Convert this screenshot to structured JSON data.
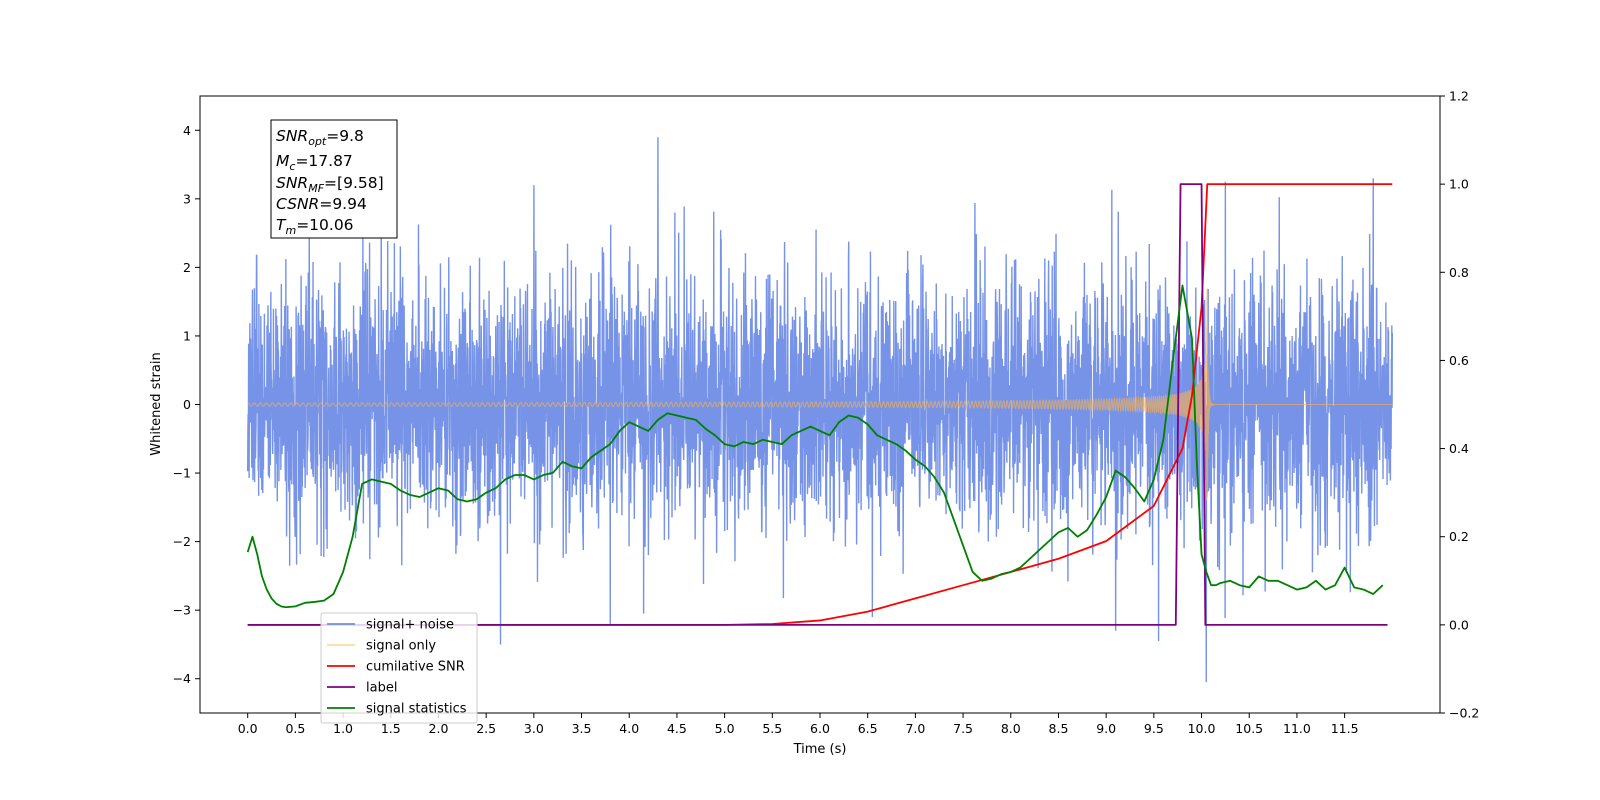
{
  "chart_data": {
    "type": "line",
    "xlabel": "Time (s)",
    "ylabel": "Whitened strain",
    "xlim": [
      -0.5,
      12.5
    ],
    "ylim": [
      -4.5,
      4.5
    ],
    "y2lim": [
      -0.2,
      1.2
    ],
    "x_ticks": [
      0.0,
      0.5,
      1.0,
      1.5,
      2.0,
      2.5,
      3.0,
      3.5,
      4.0,
      4.5,
      5.0,
      5.5,
      6.0,
      6.5,
      7.0,
      7.5,
      8.0,
      8.5,
      9.0,
      9.5,
      10.0,
      10.5,
      11.0,
      11.5
    ],
    "x_tick_labels": [
      "0.0",
      "0.5",
      "1.0",
      "1.5",
      "2.0",
      "2.5",
      "3.0",
      "3.5",
      "4.0",
      "4.5",
      "5.0",
      "5.5",
      "6.0",
      "6.5",
      "7.0",
      "7.5",
      "8.0",
      "8.5",
      "9.0",
      "9.5",
      "10.0",
      "10.5",
      "11.0",
      "11.5"
    ],
    "y_ticks": [
      -4,
      -3,
      -2,
      -1,
      0,
      1,
      2,
      3,
      4
    ],
    "y_tick_labels": [
      "−4",
      "−3",
      "−2",
      "−1",
      "0",
      "1",
      "2",
      "3",
      "4"
    ],
    "y2_ticks": [
      -0.2,
      0.0,
      0.2,
      0.4,
      0.6,
      0.8,
      1.0,
      1.2
    ],
    "y2_tick_labels": [
      "−0.2",
      "0.0",
      "0.2",
      "0.4",
      "0.6",
      "0.8",
      "1.0",
      "1.2"
    ],
    "grid": false,
    "legend_placement": "lower-left",
    "info_box": {
      "snr_opt": {
        "base": "SNR",
        "sub": "opt",
        "value": "=9.8"
      },
      "mc": {
        "base": "M",
        "sub": "c",
        "value": "=17.87"
      },
      "snr_mf": {
        "base": "SNR",
        "sub": "MF",
        "value": "=[9.58]"
      },
      "csnr": {
        "base": "CSNR",
        "value": "=9.94"
      },
      "tm": {
        "base": "T",
        "sub": "m",
        "value": "=10.06"
      }
    },
    "series": [
      {
        "name": "signal+ noise",
        "axis": "left",
        "color": "#6f8de6",
        "kind": "noise",
        "x_range": [
          0.0,
          12.0
        ],
        "sigma": 0.9,
        "y_min": -4.05,
        "y_max": 3.9,
        "spikes": [
          [
            4.3,
            3.9
          ],
          [
            10.05,
            -4.05
          ],
          [
            11.8,
            3.3
          ],
          [
            10.25,
            3.25
          ],
          [
            2.65,
            -3.5
          ],
          [
            9.1,
            -3.3
          ],
          [
            9.55,
            -3.45
          ],
          [
            3.8,
            -3.2
          ],
          [
            4.15,
            -3.05
          ],
          [
            6.55,
            -3.1
          ],
          [
            1.4,
            3.1
          ],
          [
            3.0,
            3.2
          ]
        ]
      },
      {
        "name": "signal only",
        "axis": "left",
        "color": "#ffb347",
        "kind": "chirp",
        "x_range": [
          0.0,
          12.0
        ],
        "merger_time": 10.06,
        "peak_amplitude": 1.75
      },
      {
        "name": "cumilative SNR",
        "axis": "right",
        "color": "#ff0000",
        "x": [
          0.0,
          5.0,
          5.5,
          6.0,
          6.5,
          7.0,
          7.5,
          8.0,
          8.5,
          9.0,
          9.5,
          9.8,
          9.9,
          10.0,
          10.06,
          12.0
        ],
        "y": [
          0.0,
          0.0,
          0.002,
          0.01,
          0.03,
          0.06,
          0.09,
          0.12,
          0.15,
          0.19,
          0.27,
          0.4,
          0.52,
          0.72,
          1.0,
          1.0
        ]
      },
      {
        "name": "label",
        "axis": "right",
        "color": "#800080",
        "x": [
          0.0,
          9.73,
          9.78,
          10.0,
          10.04,
          11.95
        ],
        "y": [
          0.0,
          0.0,
          1.0,
          1.0,
          0.0,
          0.0
        ]
      },
      {
        "name": "signal statistics",
        "axis": "right",
        "color": "#008000",
        "x": [
          0.0,
          0.05,
          0.1,
          0.15,
          0.2,
          0.25,
          0.3,
          0.35,
          0.4,
          0.5,
          0.6,
          0.7,
          0.8,
          0.9,
          1.0,
          1.1,
          1.2,
          1.3,
          1.4,
          1.5,
          1.6,
          1.7,
          1.8,
          1.9,
          2.0,
          2.1,
          2.2,
          2.3,
          2.4,
          2.5,
          2.6,
          2.7,
          2.8,
          2.9,
          3.0,
          3.1,
          3.2,
          3.3,
          3.4,
          3.5,
          3.6,
          3.7,
          3.8,
          3.9,
          4.0,
          4.1,
          4.2,
          4.3,
          4.4,
          4.5,
          4.6,
          4.7,
          4.8,
          4.9,
          5.0,
          5.1,
          5.2,
          5.3,
          5.4,
          5.5,
          5.6,
          5.7,
          5.8,
          5.9,
          6.0,
          6.1,
          6.2,
          6.3,
          6.4,
          6.5,
          6.6,
          6.7,
          6.8,
          6.9,
          7.0,
          7.1,
          7.2,
          7.3,
          7.4,
          7.5,
          7.6,
          7.7,
          7.8,
          7.9,
          8.0,
          8.1,
          8.2,
          8.3,
          8.4,
          8.5,
          8.6,
          8.7,
          8.8,
          8.9,
          9.0,
          9.1,
          9.2,
          9.3,
          9.4,
          9.5,
          9.6,
          9.7,
          9.8,
          9.9,
          9.95,
          10.0,
          10.05,
          10.1,
          10.15,
          10.2,
          10.3,
          10.4,
          10.5,
          10.6,
          10.7,
          10.8,
          10.9,
          11.0,
          11.1,
          11.2,
          11.3,
          11.4,
          11.5,
          11.6,
          11.7,
          11.8,
          11.9
        ],
        "y": [
          0.165,
          0.2,
          0.16,
          0.11,
          0.08,
          0.06,
          0.048,
          0.042,
          0.04,
          0.042,
          0.05,
          0.052,
          0.055,
          0.07,
          0.12,
          0.2,
          0.32,
          0.33,
          0.325,
          0.32,
          0.305,
          0.295,
          0.29,
          0.3,
          0.31,
          0.305,
          0.285,
          0.28,
          0.285,
          0.3,
          0.31,
          0.33,
          0.34,
          0.34,
          0.33,
          0.34,
          0.345,
          0.37,
          0.36,
          0.355,
          0.38,
          0.395,
          0.41,
          0.44,
          0.46,
          0.45,
          0.44,
          0.465,
          0.48,
          0.475,
          0.47,
          0.465,
          0.445,
          0.43,
          0.41,
          0.405,
          0.415,
          0.41,
          0.42,
          0.415,
          0.41,
          0.43,
          0.44,
          0.45,
          0.44,
          0.43,
          0.46,
          0.475,
          0.47,
          0.455,
          0.43,
          0.42,
          0.41,
          0.395,
          0.375,
          0.36,
          0.335,
          0.3,
          0.24,
          0.18,
          0.12,
          0.1,
          0.105,
          0.115,
          0.12,
          0.13,
          0.15,
          0.17,
          0.19,
          0.21,
          0.22,
          0.2,
          0.215,
          0.25,
          0.29,
          0.35,
          0.335,
          0.31,
          0.28,
          0.33,
          0.42,
          0.6,
          0.77,
          0.65,
          0.37,
          0.16,
          0.12,
          0.09,
          0.09,
          0.095,
          0.1,
          0.09,
          0.085,
          0.11,
          0.1,
          0.1,
          0.09,
          0.08,
          0.085,
          0.1,
          0.08,
          0.09,
          0.13,
          0.085,
          0.08,
          0.07,
          0.09
        ]
      }
    ]
  }
}
